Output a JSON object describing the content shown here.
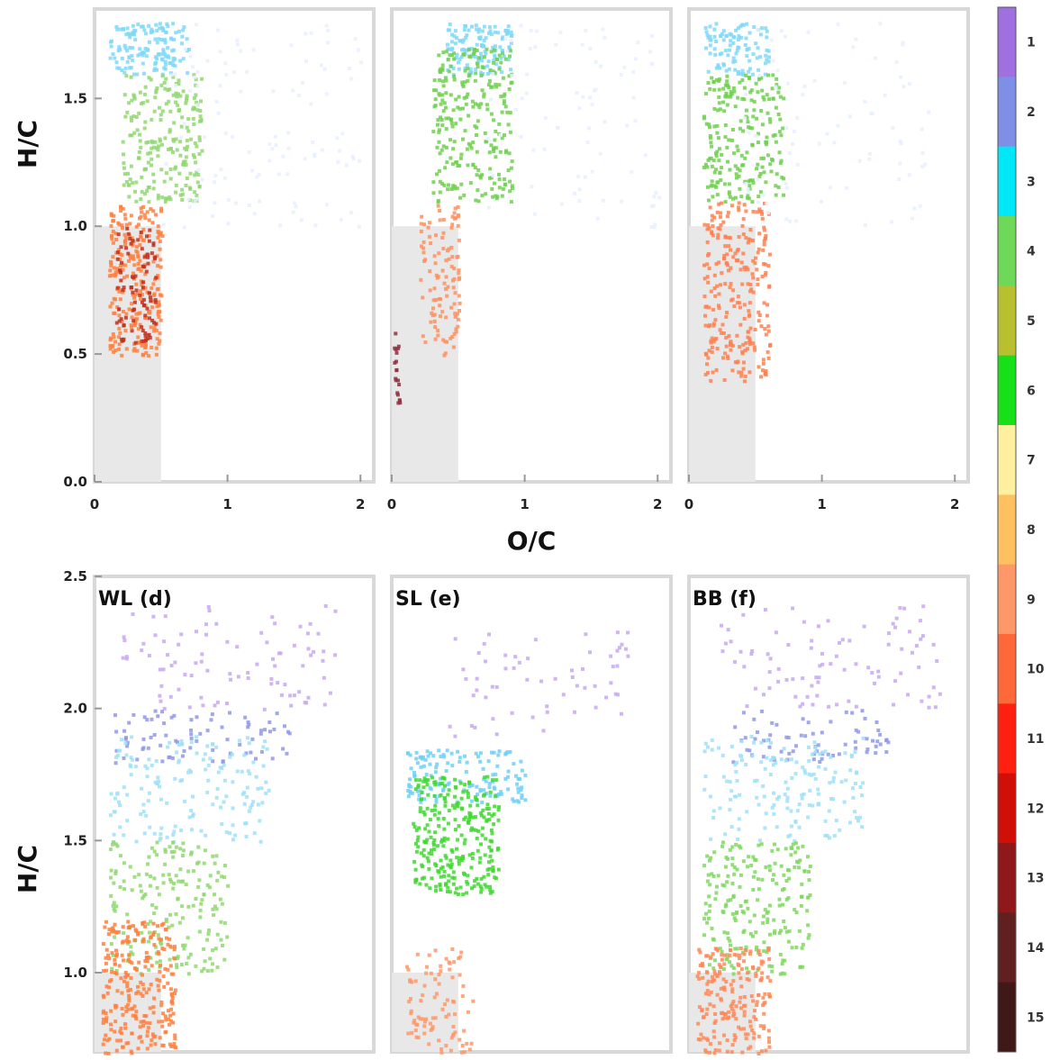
{
  "chart_data": {
    "type": "scatter",
    "description_kind": "van Krevelen diagrams",
    "panels": [
      {
        "row": 0,
        "col": 0,
        "label": "",
        "xlim": [
          0,
          2.1
        ],
        "ylim": [
          0,
          1.85
        ],
        "ylabel": "H/C",
        "xlabel": "",
        "yticks": [
          {
            "v": 0.0,
            "t": "0.0"
          },
          {
            "v": 0.5,
            "t": "0.5"
          },
          {
            "v": 1.0,
            "t": "1.0"
          },
          {
            "v": 1.5,
            "t": "1.5"
          }
        ],
        "xticks": [
          {
            "v": 0,
            "t": "0"
          },
          {
            "v": 1,
            "t": "1"
          },
          {
            "v": 2,
            "t": "2"
          }
        ],
        "shade": [
          0,
          0.5
        ]
      },
      {
        "row": 0,
        "col": 1,
        "label": "",
        "xlim": [
          0,
          2.1
        ],
        "ylim": [
          0,
          1.85
        ],
        "ylabel": "",
        "xlabel": "O/C",
        "yticks": [],
        "xticks": [
          {
            "v": 0,
            "t": "0"
          },
          {
            "v": 1,
            "t": "1"
          },
          {
            "v": 2,
            "t": "2"
          }
        ],
        "shade": [
          0,
          0.5
        ]
      },
      {
        "row": 0,
        "col": 2,
        "label": "",
        "xlim": [
          0,
          2.1
        ],
        "ylim": [
          0,
          1.85
        ],
        "ylabel": "",
        "xlabel": "",
        "yticks": [],
        "xticks": [
          {
            "v": 0,
            "t": "0"
          },
          {
            "v": 1,
            "t": "1"
          },
          {
            "v": 2,
            "t": "2"
          }
        ],
        "shade": [
          0,
          0.5
        ]
      },
      {
        "row": 1,
        "col": 0,
        "label": "WL (d)",
        "xlim": [
          0,
          2.1
        ],
        "ylim": [
          0.7,
          2.5
        ],
        "ylabel": "H/C",
        "xlabel": "",
        "yticks": [
          {
            "v": 1.0,
            "t": "1.0"
          },
          {
            "v": 1.5,
            "t": "1.5"
          },
          {
            "v": 2.0,
            "t": "2.0"
          },
          {
            "v": 2.5,
            "t": "2.5"
          }
        ],
        "xticks": [],
        "shade": [
          0,
          0.5
        ]
      },
      {
        "row": 1,
        "col": 1,
        "label": "SL (e)",
        "xlim": [
          0,
          2.1
        ],
        "ylim": [
          0.7,
          2.5
        ],
        "ylabel": "",
        "xlabel": "",
        "yticks": [],
        "xticks": [],
        "shade": [
          0,
          0.5
        ]
      },
      {
        "row": 1,
        "col": 2,
        "label": "BB (f)",
        "xlim": [
          0,
          2.1
        ],
        "ylim": [
          0.7,
          2.5
        ],
        "ylabel": "",
        "xlabel": "",
        "yticks": [],
        "xticks": [],
        "shade": [
          0,
          0.5
        ]
      }
    ],
    "colorbar": {
      "labels": [
        "1",
        "2",
        "3",
        "4",
        "5",
        "6",
        "7",
        "8",
        "9",
        "10",
        "11",
        "12",
        "13",
        "14",
        "15"
      ],
      "colors": [
        "#a070e0",
        "#7f8fe8",
        "#00e8f8",
        "#70d858",
        "#b8c030",
        "#18e018",
        "#fff0a0",
        "#ffc060",
        "#ff9868",
        "#ff6838",
        "#ff2010",
        "#d01008",
        "#901818",
        "#602020",
        "#401818"
      ]
    },
    "clusters": [
      {
        "panel": 0,
        "color": "#80d8f8",
        "x": [
          0.1,
          0.7
        ],
        "y": [
          1.6,
          1.8
        ],
        "n": 140
      },
      {
        "panel": 0,
        "color": "#90d870",
        "x": [
          0.2,
          0.8
        ],
        "y": [
          1.1,
          1.6
        ],
        "n": 220
      },
      {
        "panel": 0,
        "color": "#ff8040",
        "x": [
          0.1,
          0.5
        ],
        "y": [
          0.5,
          1.1
        ],
        "n": 260
      },
      {
        "panel": 0,
        "color": "#c03020",
        "x": [
          0.15,
          0.45
        ],
        "y": [
          0.55,
          1.0
        ],
        "n": 90
      },
      {
        "panel": 0,
        "color": "#e8f0ff",
        "x": [
          0.5,
          2.0
        ],
        "y": [
          1.0,
          1.8
        ],
        "n": 110
      },
      {
        "panel": 1,
        "color": "#80d8f8",
        "x": [
          0.4,
          0.9
        ],
        "y": [
          1.6,
          1.8
        ],
        "n": 130
      },
      {
        "panel": 1,
        "color": "#70d050",
        "x": [
          0.3,
          0.9
        ],
        "y": [
          1.1,
          1.7
        ],
        "n": 260
      },
      {
        "panel": 1,
        "color": "#ff9060",
        "x": [
          0.2,
          0.5
        ],
        "y": [
          0.5,
          1.1
        ],
        "n": 110
      },
      {
        "panel": 1,
        "color": "#903040",
        "x": [
          0.0,
          0.05
        ],
        "y": [
          0.3,
          0.6
        ],
        "n": 20
      },
      {
        "panel": 1,
        "color": "#e8f0ff",
        "x": [
          0.7,
          2.0
        ],
        "y": [
          1.0,
          1.8
        ],
        "n": 80
      },
      {
        "panel": 2,
        "color": "#80d8f8",
        "x": [
          0.1,
          0.6
        ],
        "y": [
          1.6,
          1.8
        ],
        "n": 100
      },
      {
        "panel": 2,
        "color": "#70d050",
        "x": [
          0.1,
          0.7
        ],
        "y": [
          1.1,
          1.6
        ],
        "n": 220
      },
      {
        "panel": 2,
        "color": "#ff8050",
        "x": [
          0.1,
          0.6
        ],
        "y": [
          0.4,
          1.1
        ],
        "n": 260
      },
      {
        "panel": 2,
        "color": "#e8f0ff",
        "x": [
          0.4,
          1.8
        ],
        "y": [
          1.0,
          1.8
        ],
        "n": 80
      },
      {
        "panel": 3,
        "color": "#c8a8f0",
        "x": [
          0.2,
          1.8
        ],
        "y": [
          2.0,
          2.4
        ],
        "n": 90
      },
      {
        "panel": 3,
        "color": "#9098e8",
        "x": [
          0.1,
          1.5
        ],
        "y": [
          1.8,
          2.0
        ],
        "n": 80
      },
      {
        "panel": 3,
        "color": "#a0e0f8",
        "x": [
          0.1,
          1.3
        ],
        "y": [
          1.5,
          1.9
        ],
        "n": 160
      },
      {
        "panel": 3,
        "color": "#90d870",
        "x": [
          0.1,
          1.0
        ],
        "y": [
          1.0,
          1.5
        ],
        "n": 200
      },
      {
        "panel": 3,
        "color": "#ff8040",
        "x": [
          0.05,
          0.6
        ],
        "y": [
          0.7,
          1.2
        ],
        "n": 260
      },
      {
        "panel": 4,
        "color": "#c8a8f0",
        "x": [
          0.3,
          1.8
        ],
        "y": [
          1.9,
          2.3
        ],
        "n": 60
      },
      {
        "panel": 4,
        "color": "#70d0f8",
        "x": [
          0.1,
          1.0
        ],
        "y": [
          1.65,
          1.85
        ],
        "n": 140
      },
      {
        "panel": 4,
        "color": "#40d830",
        "x": [
          0.15,
          0.8
        ],
        "y": [
          1.3,
          1.75
        ],
        "n": 280
      },
      {
        "panel": 4,
        "color": "#ff9868",
        "x": [
          0.1,
          0.6
        ],
        "y": [
          0.7,
          1.1
        ],
        "n": 90
      },
      {
        "panel": 5,
        "color": "#c8a8f0",
        "x": [
          0.2,
          1.9
        ],
        "y": [
          2.0,
          2.4
        ],
        "n": 90
      },
      {
        "panel": 5,
        "color": "#9098e8",
        "x": [
          0.3,
          1.5
        ],
        "y": [
          1.8,
          2.0
        ],
        "n": 70
      },
      {
        "panel": 5,
        "color": "#a0e0f8",
        "x": [
          0.1,
          1.3
        ],
        "y": [
          1.5,
          1.9
        ],
        "n": 160
      },
      {
        "panel": 5,
        "color": "#80d860",
        "x": [
          0.1,
          0.9
        ],
        "y": [
          1.0,
          1.5
        ],
        "n": 220
      },
      {
        "panel": 5,
        "color": "#ff8858",
        "x": [
          0.05,
          0.6
        ],
        "y": [
          0.7,
          1.1
        ],
        "n": 200
      }
    ]
  }
}
